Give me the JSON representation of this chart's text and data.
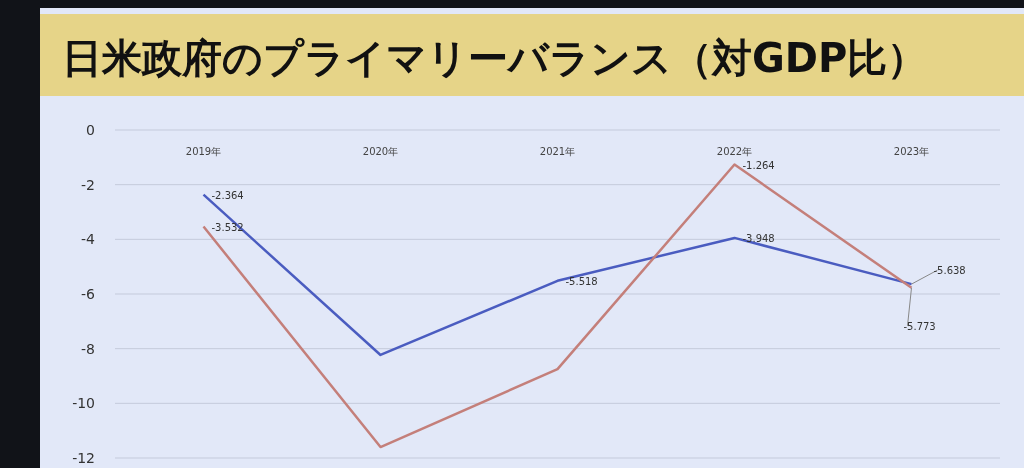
{
  "chart_data": {
    "type": "line",
    "title": "日米政府のプライマリーバランス（対GDP比）",
    "categories": [
      "2019年",
      "2020年",
      "2021年",
      "2022年",
      "2023年"
    ],
    "series": [
      {
        "color": "#4a5cc0",
        "values": [
          -2.364,
          -8.23,
          -5.518,
          -3.948,
          -5.638
        ],
        "value_labels": [
          "-2.364",
          null,
          "-5.518",
          "-3.948",
          "-5.638"
        ]
      },
      {
        "color": "#c47f7a",
        "values": [
          -3.532,
          -11.6,
          -8.75,
          -1.264,
          -5.773
        ],
        "value_labels": [
          "-3.532",
          null,
          null,
          "-1.264",
          "-5.773"
        ]
      }
    ],
    "ylim": [
      -12,
      0
    ],
    "yticks": [
      0,
      -2,
      -4,
      -6,
      -8,
      -10,
      -12
    ],
    "grid": "y"
  }
}
